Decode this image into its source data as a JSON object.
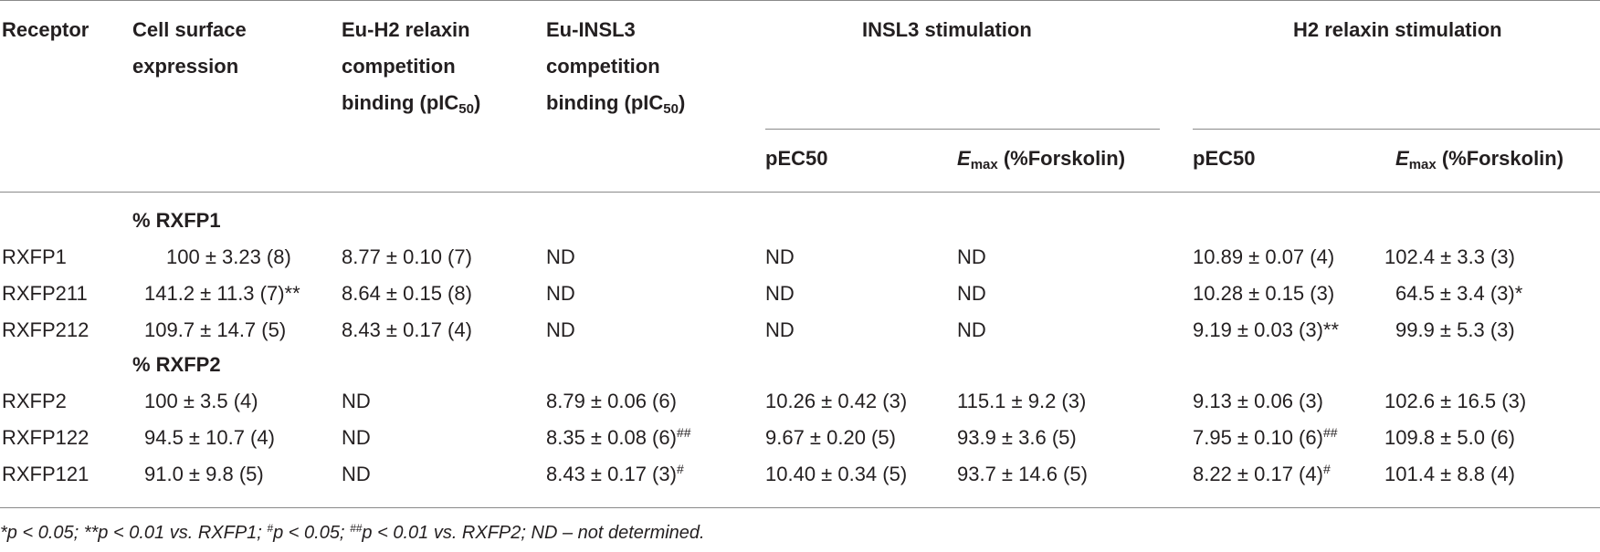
{
  "headers": {
    "receptor": "Receptor",
    "cell_surface_1": "Cell surface",
    "cell_surface_2": "expression",
    "eu_h2_1": "Eu-H2 relaxin",
    "eu_h2_2": "competition",
    "eu_h2_3": "binding (pIC",
    "eu_h2_sub": "50",
    "eu_h2_close": ")",
    "eu_insl3_1": "Eu-INSL3",
    "eu_insl3_2": "competition",
    "eu_insl3_3": "binding (pIC",
    "eu_insl3_sub": "50",
    "eu_insl3_close": ")",
    "insl3_stim": "INSL3 stimulation",
    "h2_stim": "H2 relaxin stimulation",
    "pec50_a": "pEC50",
    "emax_a_e": "E",
    "emax_a_sub": "max",
    "emax_a_rest": " (%Forskolin)",
    "pec50_b": "pEC50",
    "emax_b_e": "E",
    "emax_b_sub": "max",
    "emax_b_rest": " (%Forskolin)"
  },
  "group1": "% RXFP1",
  "group2": "% RXFP2",
  "rows": [
    {
      "receptor": "RXFP1",
      "surface": "100 ± 3.23 (8)",
      "h2bind": "8.77 ± 0.10 (7)",
      "insl3bind": "ND",
      "insl3_pec": "ND",
      "insl3_emax": "ND",
      "h2_pec": "10.89 ± 0.07 (4)",
      "h2_emax": "102.4 ± 3.3 (3)"
    },
    {
      "receptor": "RXFP211",
      "surface": "141.2 ± 11.3 (7)**",
      "h2bind": "8.64 ± 0.15 (8)",
      "insl3bind": "ND",
      "insl3_pec": "ND",
      "insl3_emax": "ND",
      "h2_pec": "10.28 ± 0.15 (3)",
      "h2_emax": "64.5 ± 3.4 (3)*"
    },
    {
      "receptor": "RXFP212",
      "surface": "109.7 ± 14.7 (5)",
      "h2bind": "8.43 ± 0.17 (4)",
      "insl3bind": "ND",
      "insl3_pec": "ND",
      "insl3_emax": "ND",
      "h2_pec": "9.19 ± 0.03 (3)**",
      "h2_emax": "99.9 ± 5.3 (3)"
    },
    {
      "receptor": "RXFP2",
      "surface": "100 ± 3.5 (4)",
      "h2bind": "ND",
      "insl3bind": "8.79 ± 0.06 (6)",
      "insl3_pec": "10.26 ± 0.42 (3)",
      "insl3_emax": "115.1 ± 9.2 (3)",
      "h2_pec": "9.13 ± 0.06 (3)",
      "h2_emax": "102.6 ± 16.5 (3)"
    },
    {
      "receptor": "RXFP122",
      "surface": "94.5 ± 10.7 (4)",
      "h2bind": "ND",
      "insl3bind": "8.35 ± 0.08 (6)",
      "insl3bind_sup": "##",
      "insl3_pec": "9.67 ± 0.20 (5)",
      "insl3_emax": "93.9 ± 3.6 (5)",
      "h2_pec": "7.95 ± 0.10 (6)",
      "h2_pec_sup": "##",
      "h2_emax": "109.8 ± 5.0 (6)"
    },
    {
      "receptor": "RXFP121",
      "surface": "91.0 ± 9.8 (5)",
      "h2bind": "ND",
      "insl3bind": "8.43 ± 0.17 (3)",
      "insl3bind_sup": "#",
      "insl3_pec": "10.40 ± 0.34 (5)",
      "insl3_emax": "93.7 ± 14.6 (5)",
      "h2_pec": "8.22 ± 0.17 (4)",
      "h2_pec_sup": "#",
      "h2_emax": "101.4 ± 8.8 (4)"
    }
  ],
  "footnote": {
    "a": "*p < 0.05; **p < 0.01 vs. RXFP1; ",
    "b_sup": "#",
    "b": "p < 0.05; ",
    "c_sup": "##",
    "c": "p < 0.01 vs. RXFP2; ND – not determined."
  }
}
